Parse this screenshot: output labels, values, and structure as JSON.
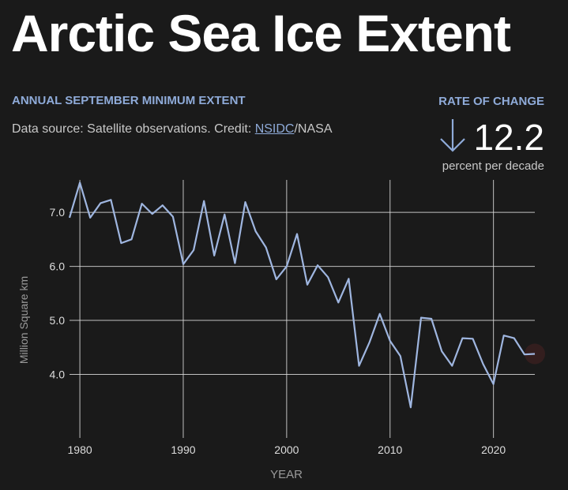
{
  "header": {
    "title": "Arctic Sea Ice Extent",
    "subtitle": "ANNUAL SEPTEMBER MINIMUM EXTENT",
    "source_prefix": "Data source: Satellite observations. Credit: ",
    "source_link": "NSIDC",
    "source_suffix": "/NASA"
  },
  "rate": {
    "label": "RATE OF CHANGE",
    "value": "12.2",
    "unit": "percent per decade",
    "icon": "arrow-down-icon"
  },
  "colors": {
    "background": "#1a1a1a",
    "line": "#9fb6e0",
    "accent": "#8fabd9",
    "grid": "#dddddd"
  },
  "chart_data": {
    "type": "line",
    "title": "",
    "xlabel": "YEAR",
    "ylabel": "Million Square km",
    "xlim": [
      1979,
      2024
    ],
    "ylim": [
      3.0,
      7.6
    ],
    "xticks": [
      1980,
      1990,
      2000,
      2010,
      2020
    ],
    "yticks": [
      4.0,
      5.0,
      6.0,
      7.0
    ],
    "ytick_labels": [
      "4.0",
      "5.0",
      "6.0",
      "7.0"
    ],
    "grid": true,
    "series": [
      {
        "x": [
          1979,
          1980,
          1981,
          1982,
          1983,
          1984,
          1985,
          1986,
          1987,
          1988,
          1989,
          1990,
          1991,
          1992,
          1993,
          1994,
          1995,
          1996,
          1997,
          1998,
          1999,
          2000,
          2001,
          2002,
          2003,
          2004,
          2005,
          2006,
          2007,
          2008,
          2009,
          2010,
          2011,
          2012,
          2013,
          2014,
          2015,
          2016,
          2017,
          2018,
          2019,
          2020,
          2021,
          2022,
          2023,
          2024
        ],
        "values": [
          6.9,
          7.55,
          6.9,
          7.17,
          7.23,
          6.43,
          6.5,
          7.16,
          6.97,
          7.13,
          6.92,
          6.04,
          6.3,
          7.21,
          6.2,
          6.96,
          6.06,
          7.19,
          6.65,
          6.35,
          5.76,
          6.0,
          6.6,
          5.66,
          6.02,
          5.8,
          5.33,
          5.77,
          4.16,
          4.59,
          5.12,
          4.62,
          4.34,
          3.39,
          5.05,
          5.03,
          4.43,
          4.16,
          4.67,
          4.66,
          4.19,
          3.82,
          4.72,
          4.67,
          4.37,
          4.38
        ]
      }
    ]
  }
}
